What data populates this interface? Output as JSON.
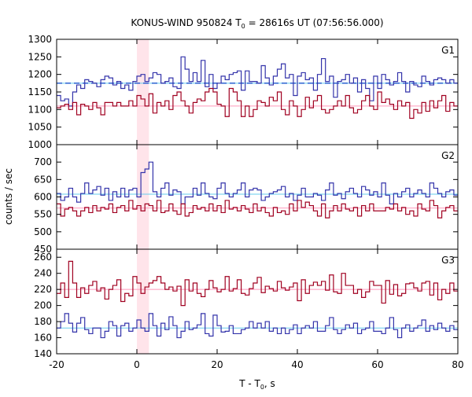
{
  "chart_data": {
    "type": "line",
    "title_prefix": "KONUS-WIND 950824 T",
    "title_sub": "0",
    "title_suffix": " = 28616s UT (07:56:56.000)",
    "xlabel_prefix": "T - T",
    "xlabel_sub": "0",
    "xlabel_suffix": ", s",
    "ylabel": "counts / sec",
    "xlim": [
      -20,
      80
    ],
    "x_ticks": [
      -20,
      0,
      20,
      40,
      60,
      80
    ],
    "bin_width": 1.0,
    "highlight_interval": [
      0,
      3
    ],
    "colors": {
      "blue": "#3333aa",
      "red": "#a00020",
      "cyan": "#66ccee",
      "pink": "#ff99bb",
      "highlight": "#ffe4ea",
      "dashed": "#1a55cc"
    },
    "panels": [
      {
        "label": "G1",
        "ylim": [
          1000,
          1300
        ],
        "y_ticks": [
          1000,
          1050,
          1100,
          1150,
          1200,
          1250,
          1300
        ],
        "bg_levels": [
          {
            "color": "pink",
            "value": 1110,
            "dashed": false
          },
          {
            "color": "cyan",
            "value": 1175,
            "dashed": false
          },
          {
            "color": "dashed",
            "value": 1175,
            "dashed": true
          }
        ],
        "series": [
          {
            "color": "blue",
            "values": [
              1140,
              1125,
              1130,
              1110,
              1150,
              1170,
              1160,
              1185,
              1180,
              1175,
              1165,
              1185,
              1195,
              1190,
              1170,
              1180,
              1160,
              1170,
              1155,
              1180,
              1195,
              1200,
              1180,
              1190,
              1205,
              1200,
              1175,
              1180,
              1190,
              1165,
              1160,
              1250,
              1215,
              1180,
              1205,
              1180,
              1240,
              1165,
              1200,
              1160,
              1175,
              1195,
              1185,
              1200,
              1205,
              1210,
              1155,
              1210,
              1180,
              1180,
              1175,
              1225,
              1190,
              1170,
              1195,
              1215,
              1230,
              1190,
              1200,
              1140,
              1195,
              1205,
              1185,
              1190,
              1155,
              1200,
              1245,
              1180,
              1195,
              1135,
              1180,
              1185,
              1200,
              1175,
              1190,
              1150,
              1185,
              1160,
              1125,
              1195,
              1160,
              1200,
              1185,
              1170,
              1180,
              1205,
              1180,
              1150,
              1180,
              1170,
              1165,
              1195,
              1180,
              1170,
              1185,
              1190,
              1185,
              1175,
              1185,
              1175
            ]
          },
          {
            "color": "red",
            "values": [
              1105,
              1110,
              1115,
              1100,
              1120,
              1085,
              1115,
              1110,
              1100,
              1120,
              1105,
              1085,
              1120,
              1120,
              1110,
              1120,
              1110,
              1110,
              1125,
              1110,
              1140,
              1130,
              1110,
              1145,
              1090,
              1120,
              1110,
              1125,
              1100,
              1140,
              1150,
              1125,
              1110,
              1090,
              1120,
              1130,
              1125,
              1150,
              1160,
              1150,
              1115,
              1110,
              1080,
              1160,
              1150,
              1125,
              1080,
              1110,
              1080,
              1100,
              1125,
              1120,
              1110,
              1135,
              1125,
              1150,
              1100,
              1085,
              1125,
              1110,
              1080,
              1100,
              1135,
              1105,
              1125,
              1140,
              1100,
              1090,
              1100,
              1110,
              1125,
              1110,
              1140,
              1105,
              1090,
              1100,
              1125,
              1140,
              1110,
              1100,
              1150,
              1120,
              1130,
              1115,
              1100,
              1125,
              1110,
              1120,
              1075,
              1100,
              1090,
              1120,
              1095,
              1125,
              1105,
              1125,
              1140,
              1095,
              1120,
              1110
            ]
          }
        ]
      },
      {
        "label": "G2",
        "ylim": [
          450,
          750
        ],
        "y_ticks": [
          450,
          500,
          550,
          600,
          650,
          700
        ],
        "bg_levels": [
          {
            "color": "pink",
            "value": 568,
            "dashed": false
          },
          {
            "color": "cyan",
            "value": 608,
            "dashed": false
          }
        ],
        "series": [
          {
            "color": "blue",
            "values": [
              610,
              590,
              600,
              625,
              600,
              585,
              610,
              640,
              610,
              620,
              630,
              605,
              625,
              590,
              615,
              600,
              625,
              600,
              620,
              625,
              600,
              670,
              680,
              700,
              615,
              600,
              625,
              640,
              605,
              620,
              615,
              580,
              600,
              600,
              625,
              605,
              640,
              610,
              600,
              595,
              625,
              640,
              610,
              600,
              610,
              620,
              640,
              600,
              620,
              625,
              620,
              590,
              600,
              610,
              615,
              620,
              630,
              600,
              610,
              590,
              605,
              625,
              600,
              600,
              610,
              605,
              590,
              620,
              640,
              605,
              610,
              595,
              615,
              625,
              610,
              600,
              630,
              620,
              605,
              615,
              600,
              640,
              605,
              580,
              610,
              600,
              615,
              625,
              600,
              610,
              620,
              610,
              600,
              640,
              625,
              610,
              600,
              615,
              620,
              605
            ]
          },
          {
            "color": "red",
            "values": [
              580,
              545,
              565,
              570,
              560,
              545,
              560,
              570,
              555,
              575,
              560,
              570,
              565,
              580,
              555,
              570,
              575,
              560,
              590,
              565,
              575,
              560,
              580,
              575,
              560,
              590,
              555,
              560,
              580,
              560,
              550,
              580,
              545,
              555,
              575,
              565,
              570,
              560,
              580,
              560,
              575,
              555,
              590,
              565,
              570,
              560,
              575,
              565,
              555,
              580,
              560,
              570,
              555,
              545,
              570,
              555,
              560,
              550,
              580,
              560,
              590,
              570,
              585,
              575,
              560,
              545,
              580,
              540,
              560,
              575,
              560,
              580,
              565,
              560,
              570,
              545,
              575,
              560,
              580,
              560,
              560,
              560,
              570,
              565,
              580,
              560,
              570,
              550,
              560,
              545,
              580,
              565,
              560,
              590,
              575,
              540,
              560,
              570,
              575,
              560
            ]
          }
        ]
      },
      {
        "label": "G3",
        "ylim": [
          140,
          270
        ],
        "y_ticks": [
          140,
          160,
          180,
          200,
          220,
          240,
          260
        ],
        "bg_levels": [
          {
            "color": "pink",
            "value": 220,
            "dashed": false
          },
          {
            "color": "cyan",
            "value": 172,
            "dashed": false
          }
        ],
        "series": [
          {
            "color": "red",
            "values": [
              215,
              228,
              210,
              255,
              228,
              210,
              222,
              215,
              225,
              230,
              218,
              222,
              208,
              220,
              225,
              232,
              205,
              215,
              212,
              236,
              228,
              215,
              223,
              228,
              231,
              236,
              228,
              220,
              223,
              218,
              224,
              200,
              232,
              218,
              228,
              215,
              211,
              220,
              231,
              222,
              217,
              220,
              236,
              218,
              221,
              232,
              215,
              213,
              221,
              228,
              235,
              216,
              224,
              221,
              218,
              230,
              222,
              219,
              223,
              228,
              206,
              232,
              215,
              225,
              229,
              225,
              230,
              219,
              238,
              217,
              215,
              240,
              225,
              225,
              215,
              220,
              210,
              217,
              230,
              225,
              225,
              203,
              231,
              214,
              226,
              212,
              215,
              227,
              228,
              222,
              218,
              228,
              230,
              213,
              228,
              207,
              220,
              215,
              228,
              218
            ]
          },
          {
            "color": "blue",
            "values": [
              172,
              180,
              190,
              178,
              167,
              178,
              185,
              170,
              165,
              172,
              172,
              160,
              168,
              180,
              175,
              162,
              175,
              178,
              168,
              172,
              182,
              172,
              168,
              190,
              175,
              162,
              178,
              170,
              186,
              175,
              160,
              168,
              180,
              170,
              172,
              176,
              190,
              165,
              162,
              188,
              175,
              167,
              168,
              175,
              165,
              165,
              170,
              172,
              180,
              172,
              178,
              172,
              180,
              168,
              172,
              165,
              172,
              165,
              170,
              176,
              165,
              172,
              175,
              172,
              180,
              168,
              168,
              175,
              185,
              170,
              165,
              170,
              176,
              172,
              178,
              165,
              170,
              172,
              180,
              168,
              168,
              165,
              172,
              185,
              170,
              160,
              172,
              176,
              168,
              172,
              175,
              182,
              168,
              175,
              170,
              178,
              172,
              168,
              175,
              170
            ]
          }
        ]
      }
    ]
  }
}
